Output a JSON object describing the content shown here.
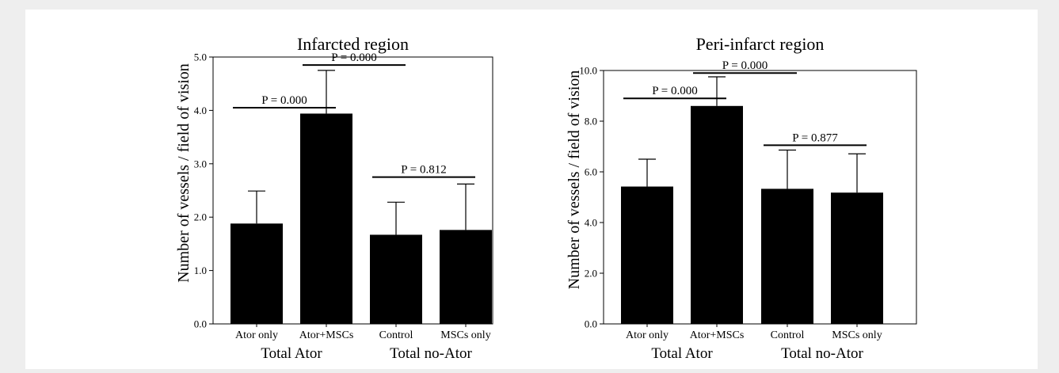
{
  "chart_data": [
    {
      "type": "bar",
      "title": "Infarcted region",
      "ylabel": "Number of vessels / field of vision",
      "categories": [
        "Ator only",
        "Ator+MSCs",
        "Control",
        "MSCs only"
      ],
      "groups": [
        "Total Ator",
        "Total no-Ator"
      ],
      "values": [
        1.88,
        3.94,
        1.67,
        1.76
      ],
      "errors": [
        0.61,
        0.81,
        0.61,
        0.86
      ],
      "ylim": [
        0,
        5
      ],
      "yticks": [
        0,
        1,
        2,
        3,
        4,
        5
      ],
      "ytick_labels": [
        "0.0",
        "1.0",
        "2.0",
        "3.0",
        "4.0",
        "5.0"
      ],
      "annotations": [
        {
          "label": "P = 0.000",
          "from": 0,
          "to": 1,
          "y": 4.05
        },
        {
          "label": "P = 0.000",
          "from": 1,
          "to": 2,
          "y": 4.85
        },
        {
          "label": "P = 0.812",
          "from": 2,
          "to": 3,
          "y": 2.75
        }
      ],
      "grid": false,
      "color": "#000000"
    },
    {
      "type": "bar",
      "title": "Peri-infarct region",
      "ylabel": "Number of vessels / field of vision",
      "categories": [
        "Ator only",
        "Ator+MSCs",
        "Control",
        "MSCs only"
      ],
      "groups": [
        "Total Ator",
        "Total no-Ator"
      ],
      "values": [
        5.42,
        8.6,
        5.33,
        5.18
      ],
      "errors": [
        1.08,
        1.15,
        1.53,
        1.53
      ],
      "ylim": [
        0,
        10
      ],
      "yticks": [
        0,
        2,
        4,
        6,
        8,
        10
      ],
      "ytick_labels": [
        "0.0",
        "2.0",
        "4.0",
        "6.0",
        "8.0",
        "10.0"
      ],
      "annotations": [
        {
          "label": "P = 0.000",
          "from": 0,
          "to": 1,
          "y": 8.9
        },
        {
          "label": "P = 0.000",
          "from": 1,
          "to": 2,
          "y": 9.9
        },
        {
          "label": "P = 0.877",
          "from": 2,
          "to": 3,
          "y": 7.05
        }
      ],
      "grid": false,
      "color": "#000000"
    }
  ]
}
